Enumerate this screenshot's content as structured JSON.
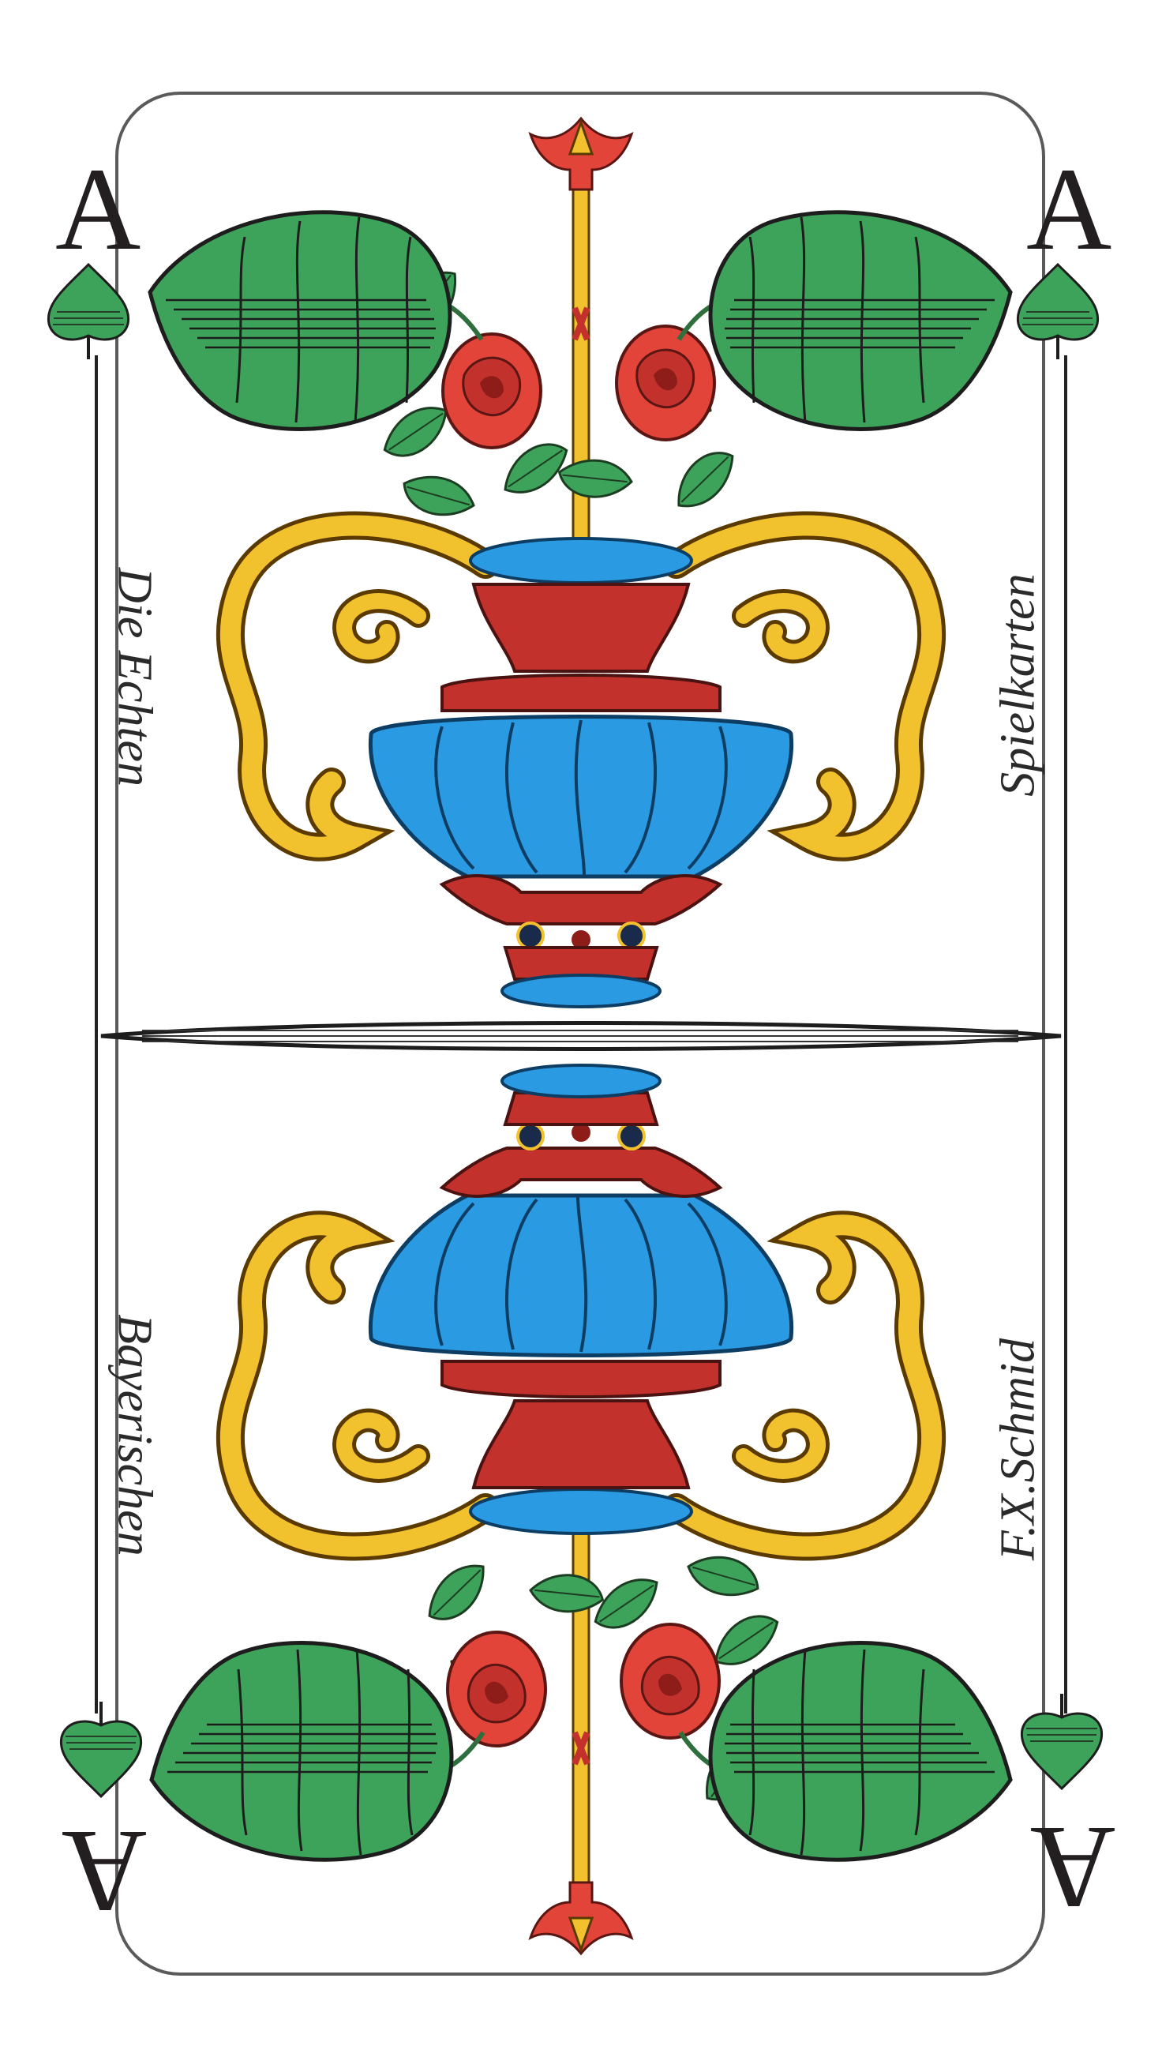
{
  "card": {
    "rank": "A",
    "suit": "leaves",
    "texts": {
      "top_left": "Die Echten",
      "top_right": "Spielkarten",
      "bottom_left": "Bayerischen",
      "bottom_right": "F.X.Schmid"
    }
  },
  "colors": {
    "leaf_green": "#3da35a",
    "leaf_dark": "#1f5e32",
    "vase_red": "#c2312c",
    "vase_blue": "#2a9be3",
    "gold": "#f2c12e",
    "rose_red": "#e2443a",
    "frame": "#444444"
  }
}
